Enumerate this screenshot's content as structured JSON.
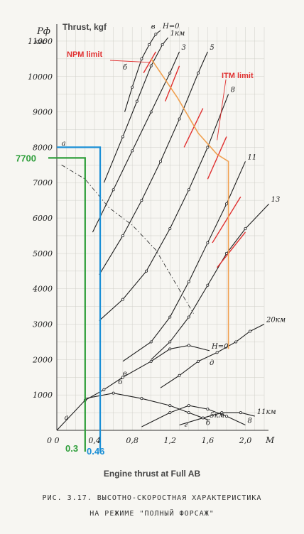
{
  "chart_data": {
    "type": "line",
    "title": "Engine thrust at Full AB",
    "xlabel": "M",
    "ylabel": "Thrust, kgf",
    "ylabel_ru_symbol": "Pф",
    "ylabel_ru_unit": "кгс",
    "xlim": [
      0,
      2.2
    ],
    "ylim": [
      0,
      11400
    ],
    "x_ticks": [
      "0",
      "0,4",
      "0,8",
      "1,2",
      "1,6",
      "2,0"
    ],
    "y_ticks": [
      "1000",
      "2000",
      "3000",
      "4000",
      "5000",
      "6000",
      "7000",
      "8000",
      "9000",
      "10000",
      "11000"
    ],
    "grid": true,
    "series": [
      {
        "name": "H=0",
        "x": [
          0.72,
          0.8,
          0.9,
          0.98,
          1.05,
          1.1
        ],
        "y": [
          9000,
          9700,
          10500,
          10900,
          11200,
          11300
        ]
      },
      {
        "name": "1км",
        "x": [
          0.5,
          0.7,
          0.85,
          1.0,
          1.12,
          1.18
        ],
        "y": [
          7000,
          8300,
          9300,
          10300,
          10900,
          11100
        ]
      },
      {
        "name": "3",
        "x": [
          0.38,
          0.6,
          0.8,
          1.0,
          1.2,
          1.3
        ],
        "y": [
          5600,
          6800,
          7900,
          9000,
          10100,
          10700
        ]
      },
      {
        "name": "5",
        "x": [
          0.45,
          0.7,
          0.9,
          1.1,
          1.3,
          1.5,
          1.6
        ],
        "y": [
          4400,
          5500,
          6500,
          7600,
          8800,
          10100,
          10700
        ]
      },
      {
        "name": "8",
        "x": [
          0.45,
          0.7,
          0.95,
          1.2,
          1.4,
          1.6,
          1.82
        ],
        "y": [
          3100,
          3700,
          4500,
          5700,
          6800,
          8000,
          9500
        ]
      },
      {
        "name": "11",
        "x": [
          0.7,
          1.0,
          1.2,
          1.4,
          1.6,
          1.8,
          2.0
        ],
        "y": [
          1950,
          2500,
          3200,
          4200,
          5300,
          6400,
          7600
        ]
      },
      {
        "name": "13",
        "x": [
          1.0,
          1.2,
          1.4,
          1.6,
          1.8,
          2.0,
          2.25
        ],
        "y": [
          2000,
          2500,
          3200,
          4100,
          5000,
          5700,
          6400
        ]
      },
      {
        "name": "20км",
        "x": [
          1.1,
          1.3,
          1.5,
          1.7,
          1.9,
          2.05,
          2.2
        ],
        "y": [
          1200,
          1550,
          1950,
          2200,
          2500,
          2800,
          3000
        ]
      },
      {
        "name": "H=0",
        "x": [
          0.0,
          0.3,
          0.5,
          0.7,
          1.0,
          1.2,
          1.4,
          1.62
        ],
        "y": [
          0,
          850,
          1150,
          1500,
          1950,
          2300,
          2400,
          2250
        ]
      },
      {
        "name": "5км",
        "x": [
          0.3,
          0.6,
          0.9,
          1.2,
          1.4,
          1.6
        ],
        "y": [
          900,
          1050,
          900,
          700,
          500,
          300
        ]
      },
      {
        "name": "8",
        "x": [
          0.9,
          1.2,
          1.4,
          1.6,
          1.8,
          2.0
        ],
        "y": [
          100,
          500,
          700,
          600,
          400,
          150
        ]
      },
      {
        "name": "11км",
        "x": [
          1.3,
          1.55,
          1.75,
          1.95,
          2.1
        ],
        "y": [
          150,
          350,
          500,
          500,
          400
        ]
      }
    ],
    "annotations": {
      "npm_limit": "NPM limit",
      "itm_limit": "ITM limit",
      "value_7700": "7700",
      "mach_03": "0.3",
      "mach_046": "0.46",
      "point_a": "a",
      "point_b": "б",
      "point_v": "в",
      "point_g": "г",
      "point_d": "д"
    },
    "highlight": {
      "green": {
        "thrust": 7700,
        "mach": 0.3,
        "color": "#2e9e3a"
      },
      "blue": {
        "thrust": 8000,
        "mach": 0.46,
        "color": "#1a8fd6"
      },
      "orange_line_mach": 1.82,
      "orange_color": "#f0a050",
      "red_color": "#e03030"
    }
  },
  "caption": {
    "english": "Engine thrust at Full AB",
    "russian_line1": "РИС. 3.17. ВЫСОТНО-СКОРОСТНАЯ ХАРАКТЕРИСТИКА",
    "russian_line2": "НА РЕЖИМЕ \"ПОЛНЫЙ ФОРСАЖ\""
  }
}
